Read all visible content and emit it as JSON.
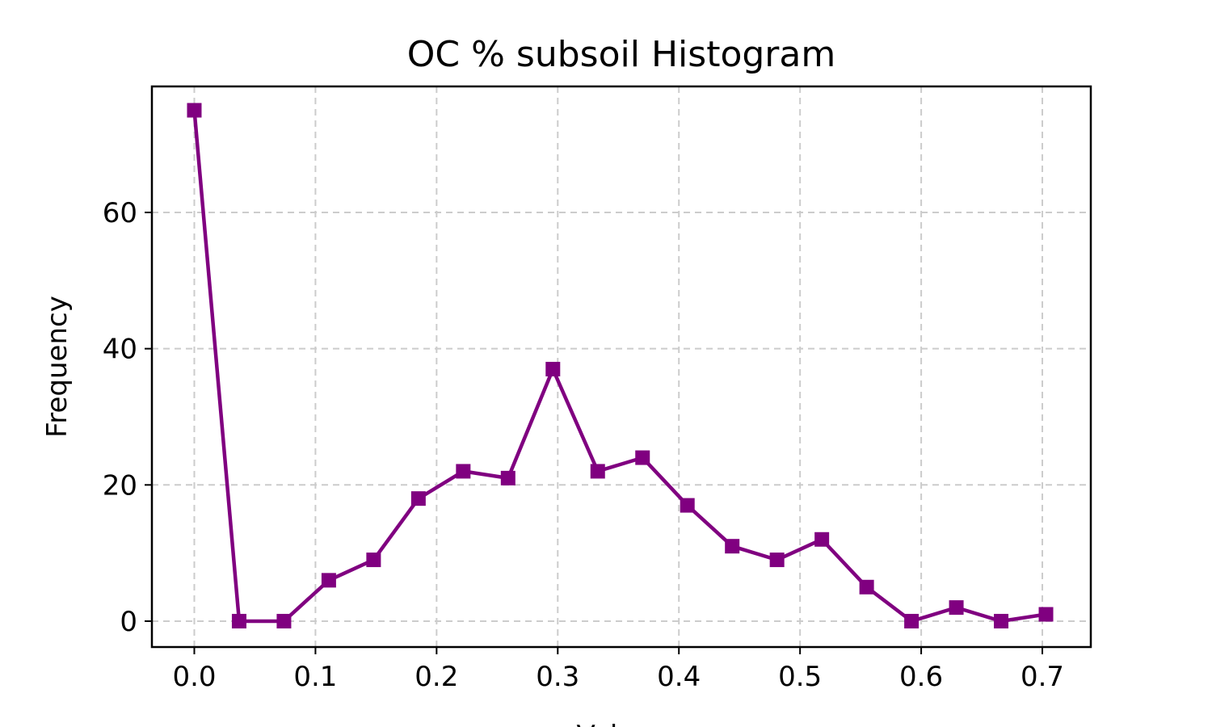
{
  "chart_data": {
    "type": "line",
    "title": "OC % subsoil Histogram",
    "xlabel": "Values",
    "ylabel": "Frequency",
    "xlim": [
      -0.035,
      0.74
    ],
    "ylim": [
      -3.8,
      78.5
    ],
    "xticks": [
      "0.0",
      "0.1",
      "0.2",
      "0.3",
      "0.4",
      "0.5",
      "0.6",
      "0.7"
    ],
    "yticks": [
      "0",
      "20",
      "40",
      "60"
    ],
    "grid": true,
    "series": [
      {
        "color": "#800080",
        "marker": "square",
        "x": [
          0.0,
          0.037,
          0.074,
          0.111,
          0.148,
          0.185,
          0.222,
          0.259,
          0.296,
          0.333,
          0.37,
          0.407,
          0.444,
          0.481,
          0.518,
          0.555,
          0.592,
          0.629,
          0.666,
          0.703
        ],
        "y": [
          75,
          0,
          0,
          6,
          9,
          18,
          22,
          21,
          37,
          22,
          24,
          17,
          11,
          9,
          12,
          5,
          0,
          2,
          0,
          1
        ]
      }
    ]
  }
}
